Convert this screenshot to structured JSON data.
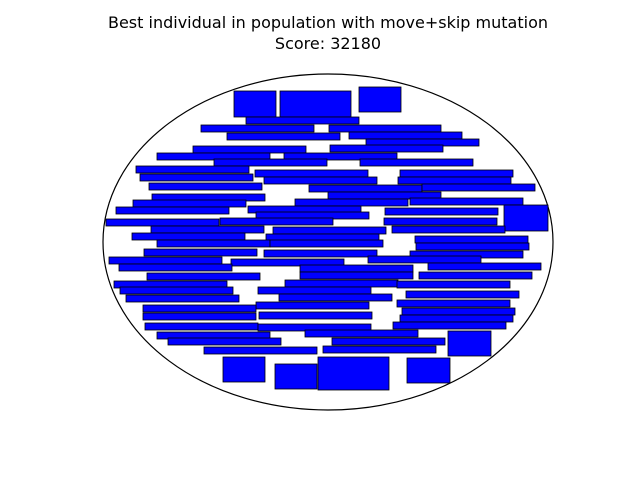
{
  "chart_data": {
    "type": "packing-diagram",
    "title_line1": "Best individual in population with move+skip mutation",
    "title_line2": "Score: 32180",
    "container_shape": "ellipse",
    "colors": {
      "fill": "#0000ff",
      "edge": "#000000",
      "container": "#000000"
    },
    "axes_visible": false
  }
}
